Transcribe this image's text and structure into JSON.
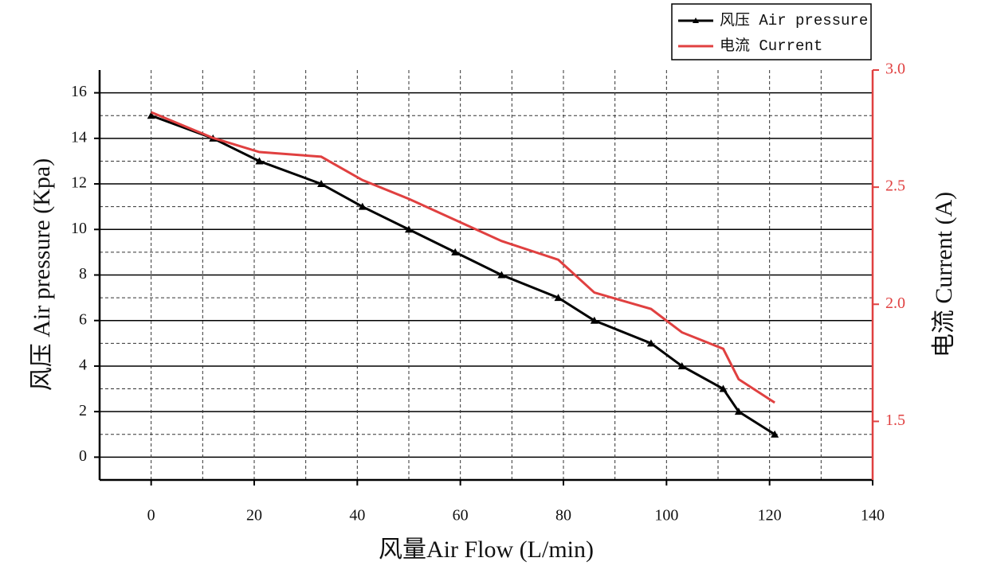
{
  "chart_data": {
    "type": "line",
    "x_label": "风量Air Flow (L/min)",
    "y_label": "风压 Air pressure (Kpa)",
    "y2_label": "电流 Current (A)",
    "xlim": [
      -10,
      140
    ],
    "xticks": [
      0,
      20,
      40,
      60,
      80,
      100,
      120,
      140
    ],
    "ylim": [
      -1,
      17
    ],
    "yticks": [
      0,
      2,
      4,
      6,
      8,
      10,
      12,
      14,
      16
    ],
    "y2lim": [
      1.25,
      3.0
    ],
    "y2ticks": [
      {
        "value": 1.5,
        "label": "1.5"
      },
      {
        "value": 2.0,
        "label": "2.0"
      },
      2.5,
      {
        "value": 3.0,
        "label": "3.0"
      }
    ],
    "grid": true,
    "legend": "top-right",
    "x": [
      0,
      12,
      21,
      33,
      41,
      50,
      59,
      68,
      79,
      86,
      97,
      103,
      111,
      114,
      121
    ],
    "series": [
      {
        "name": "风压 Air pressure",
        "color": "#000000",
        "marker": "triangle",
        "values": [
          15,
          14,
          13,
          12,
          11,
          10,
          9,
          8,
          7,
          6,
          5,
          4,
          3,
          2,
          1
        ]
      },
      {
        "name": "电流 Current",
        "color": "#e04040",
        "axis": "y2",
        "values": [
          2.82,
          2.71,
          2.65,
          2.63,
          2.53,
          2.45,
          2.36,
          2.27,
          2.19,
          2.05,
          1.98,
          1.88,
          1.81,
          1.68,
          1.58
        ]
      }
    ]
  }
}
